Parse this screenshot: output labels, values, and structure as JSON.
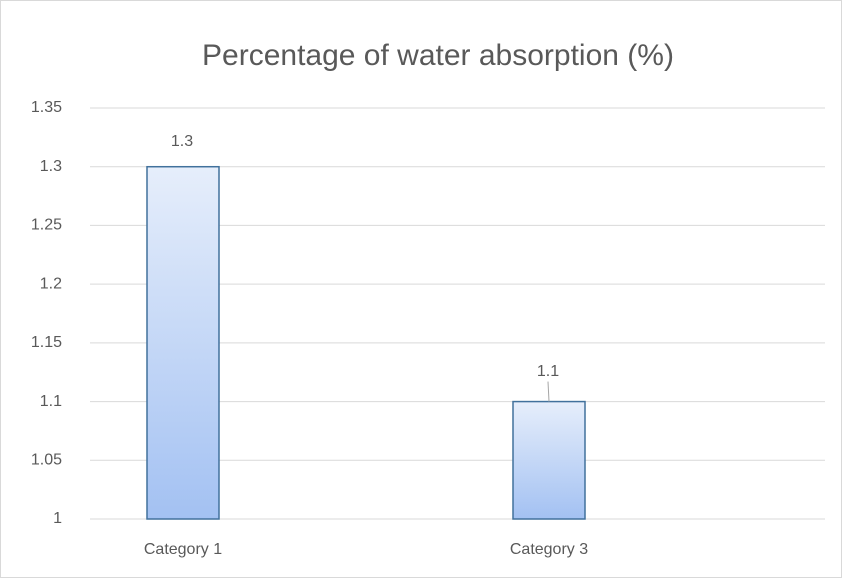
{
  "chart_data": {
    "type": "bar",
    "title": "Percentage of water absorption (%)",
    "categories": [
      "Category 1",
      "Category 3"
    ],
    "values": [
      1.3,
      1.1
    ],
    "ylim": [
      1,
      1.35
    ],
    "yticks": [
      1,
      1.05,
      1.1,
      1.15,
      1.2,
      1.25,
      1.3,
      1.35
    ],
    "grid": true
  }
}
